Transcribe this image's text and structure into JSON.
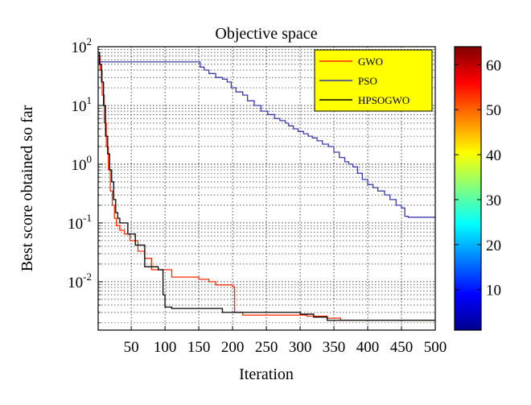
{
  "chart_data": {
    "type": "line",
    "title": "Objective space",
    "xlabel": "Iteration",
    "ylabel": "Best score obtained so far",
    "xlim": [
      1,
      500
    ],
    "ylim": [
      0.0015,
      100
    ],
    "yscale": "log",
    "grid": true,
    "legend_position": "top-right",
    "legend_background": "#ffff00",
    "x_ticks": [
      50,
      100,
      150,
      200,
      250,
      300,
      350,
      400,
      450,
      500
    ],
    "y_ticks": [
      {
        "base": "10",
        "exp": "2",
        "value": 100
      },
      {
        "base": "10",
        "exp": "1",
        "value": 10
      },
      {
        "base": "10",
        "exp": "0",
        "value": 1
      },
      {
        "base": "10",
        "exp": "-1",
        "value": 0.1
      },
      {
        "base": "10",
        "exp": "-2",
        "value": 0.01
      }
    ],
    "series": [
      {
        "name": "GWO",
        "color": "#ff2a00",
        "step": true,
        "points": [
          [
            1,
            70
          ],
          [
            4,
            40
          ],
          [
            7,
            15
          ],
          [
            10,
            5
          ],
          [
            13,
            2
          ],
          [
            16,
            0.8
          ],
          [
            19,
            0.35
          ],
          [
            22,
            0.2
          ],
          [
            25,
            0.12
          ],
          [
            28,
            0.09
          ],
          [
            33,
            0.075
          ],
          [
            40,
            0.065
          ],
          [
            48,
            0.05
          ],
          [
            57,
            0.05
          ],
          [
            60,
            0.033
          ],
          [
            70,
            0.025
          ],
          [
            80,
            0.016
          ],
          [
            100,
            0.016
          ],
          [
            110,
            0.012
          ],
          [
            140,
            0.012
          ],
          [
            150,
            0.011
          ],
          [
            165,
            0.01
          ],
          [
            175,
            0.0088
          ],
          [
            190,
            0.0088
          ],
          [
            200,
            0.0082
          ],
          [
            203,
            0.003
          ],
          [
            215,
            0.0027
          ],
          [
            240,
            0.0027
          ],
          [
            300,
            0.0027
          ],
          [
            310,
            0.0026
          ],
          [
            340,
            0.0024
          ],
          [
            360,
            0.0022
          ],
          [
            400,
            0.0022
          ],
          [
            500,
            0.0022
          ]
        ]
      },
      {
        "name": "PSO",
        "color": "#3a3aa8",
        "step": true,
        "points": [
          [
            1,
            55
          ],
          [
            150,
            55
          ],
          [
            152,
            45
          ],
          [
            158,
            40
          ],
          [
            165,
            35
          ],
          [
            175,
            30
          ],
          [
            185,
            28
          ],
          [
            192,
            25
          ],
          [
            198,
            20
          ],
          [
            205,
            17
          ],
          [
            215,
            15
          ],
          [
            222,
            12
          ],
          [
            232,
            10
          ],
          [
            242,
            8
          ],
          [
            252,
            7
          ],
          [
            262,
            6
          ],
          [
            270,
            5.5
          ],
          [
            278,
            5
          ],
          [
            283,
            4.5
          ],
          [
            290,
            4
          ],
          [
            297,
            3.6
          ],
          [
            305,
            3.3
          ],
          [
            312,
            3
          ],
          [
            318,
            2.8
          ],
          [
            325,
            2.5
          ],
          [
            333,
            2.2
          ],
          [
            342,
            2
          ],
          [
            350,
            1.6
          ],
          [
            358,
            1.3
          ],
          [
            366,
            1.1
          ],
          [
            372,
            1.0
          ],
          [
            378,
            0.9
          ],
          [
            385,
            0.7
          ],
          [
            392,
            0.55
          ],
          [
            400,
            0.45
          ],
          [
            408,
            0.4
          ],
          [
            415,
            0.35
          ],
          [
            425,
            0.3
          ],
          [
            433,
            0.25
          ],
          [
            442,
            0.2
          ],
          [
            450,
            0.18
          ],
          [
            455,
            0.13
          ],
          [
            460,
            0.125
          ],
          [
            500,
            0.125
          ]
        ]
      },
      {
        "name": "HPSOGWO",
        "color": "#000000",
        "step": true,
        "points": [
          [
            1,
            80
          ],
          [
            3,
            50
          ],
          [
            6,
            25
          ],
          [
            9,
            10
          ],
          [
            12,
            3
          ],
          [
            15,
            1.5
          ],
          [
            18,
            0.8
          ],
          [
            21,
            0.5
          ],
          [
            24,
            0.25
          ],
          [
            27,
            0.15
          ],
          [
            30,
            0.12
          ],
          [
            33,
            0.1
          ],
          [
            38,
            0.1
          ],
          [
            45,
            0.065
          ],
          [
            52,
            0.065
          ],
          [
            56,
            0.042
          ],
          [
            68,
            0.042
          ],
          [
            70,
            0.018
          ],
          [
            80,
            0.018
          ],
          [
            90,
            0.016
          ],
          [
            97,
            0.006
          ],
          [
            100,
            0.0037
          ],
          [
            110,
            0.0035
          ],
          [
            180,
            0.0035
          ],
          [
            185,
            0.003
          ],
          [
            240,
            0.003
          ],
          [
            300,
            0.0028
          ],
          [
            320,
            0.0025
          ],
          [
            340,
            0.0022
          ],
          [
            500,
            0.0022
          ]
        ]
      }
    ],
    "colorbar": {
      "range": [
        1,
        64
      ],
      "ticks": [
        10,
        20,
        30,
        40,
        50,
        60
      ]
    }
  }
}
